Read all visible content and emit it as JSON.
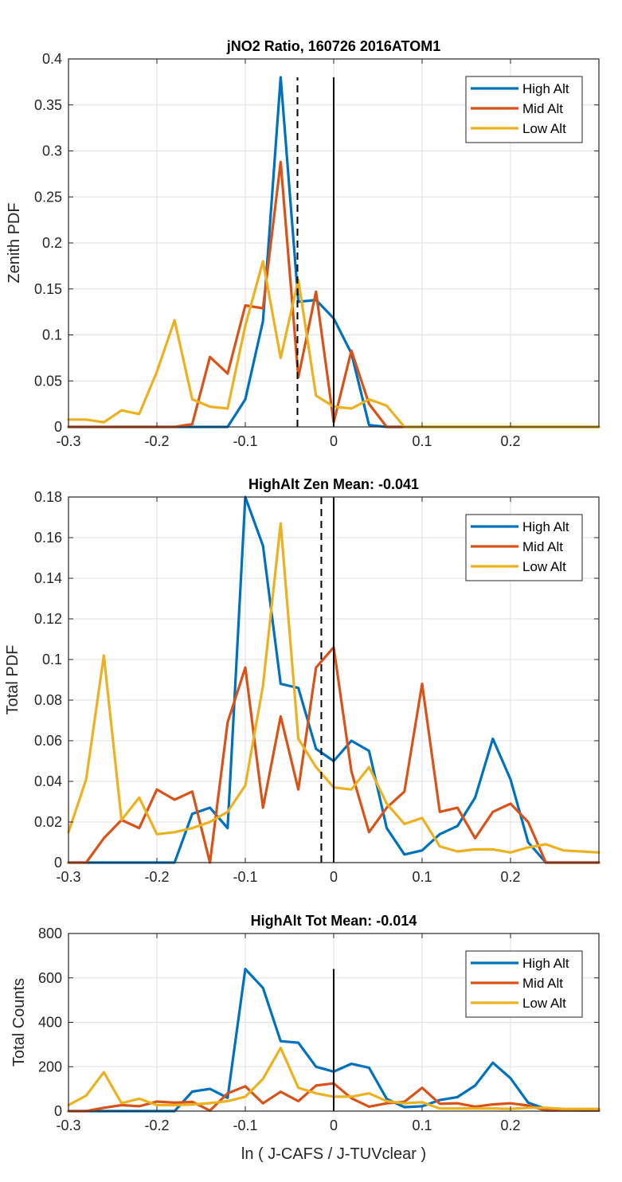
{
  "colors": {
    "high": "#0072BD",
    "mid": "#D95319",
    "low": "#EDB120"
  },
  "chart_data": [
    {
      "type": "line",
      "title": "jNO2 Ratio, 160726 2016ATOM1",
      "xlabel": "",
      "ylabel": "Zenith PDF",
      "xlim": [
        -0.3,
        0.3
      ],
      "ylim": [
        0,
        0.4
      ],
      "xticks": [
        "-0.3",
        "-0.2",
        "-0.1",
        "0",
        "0.1",
        "0.2"
      ],
      "xtick_values": [
        -0.3,
        -0.2,
        -0.1,
        0,
        0.1,
        0.2
      ],
      "yticks": [
        "0",
        "0.05",
        "0.1",
        "0.15",
        "0.2",
        "0.25",
        "0.3",
        "0.35",
        "0.4"
      ],
      "ytick_values": [
        0,
        0.05,
        0.1,
        0.15,
        0.2,
        0.25,
        0.3,
        0.35,
        0.4
      ],
      "grid": true,
      "legend": [
        "High Alt",
        "Mid Alt",
        "Low Alt"
      ],
      "legend_position": "top-right",
      "x": [
        -0.3,
        -0.28,
        -0.26,
        -0.24,
        -0.22,
        -0.2,
        -0.18,
        -0.16,
        -0.14,
        -0.12,
        -0.1,
        -0.08,
        -0.06,
        -0.04,
        -0.02,
        0,
        0.02,
        0.04,
        0.06,
        0.08,
        0.1,
        0.12,
        0.14,
        0.16,
        0.18,
        0.2,
        0.22,
        0.24,
        0.26,
        0.28,
        0.3
      ],
      "series": [
        {
          "name": "High Alt",
          "values": [
            0,
            0,
            0,
            0,
            0,
            0,
            0,
            0,
            0,
            0,
            0.03,
            0.115,
            0.38,
            0.136,
            0.138,
            0.118,
            0.08,
            0.002,
            0,
            0,
            0,
            0,
            0,
            0,
            0,
            0,
            0,
            0,
            0,
            0,
            0
          ]
        },
        {
          "name": "Mid Alt",
          "values": [
            0,
            0,
            0,
            0,
            0,
            0,
            0,
            0.003,
            0.076,
            0.058,
            0.132,
            0.129,
            0.288,
            0.054,
            0.147,
            0.005,
            0.083,
            0.025,
            0,
            0,
            0,
            0,
            0,
            0,
            0,
            0,
            0,
            0,
            0,
            0,
            0
          ]
        },
        {
          "name": "Low Alt",
          "values": [
            0.008,
            0.008,
            0.005,
            0.018,
            0.014,
            0.06,
            0.116,
            0.03,
            0.022,
            0.02,
            0.11,
            0.18,
            0.075,
            0.16,
            0.034,
            0.022,
            0.02,
            0.03,
            0.023,
            0,
            0,
            0,
            0,
            0,
            0,
            0,
            0,
            0,
            0,
            0,
            0
          ]
        }
      ],
      "vlines": [
        {
          "x": -0.041,
          "y": 0.38,
          "style": "dashed"
        },
        {
          "x": 0,
          "y": 0.38,
          "style": "solid"
        }
      ]
    },
    {
      "type": "line",
      "title": "HighAlt Zen Mean: -0.041",
      "xlabel": "",
      "ylabel": "Total PDF",
      "xlim": [
        -0.3,
        0.3
      ],
      "ylim": [
        0,
        0.18
      ],
      "xticks": [
        "-0.3",
        "-0.2",
        "-0.1",
        "0",
        "0.1",
        "0.2"
      ],
      "xtick_values": [
        -0.3,
        -0.2,
        -0.1,
        0,
        0.1,
        0.2
      ],
      "yticks": [
        "0",
        "0.02",
        "0.04",
        "0.06",
        "0.08",
        "0.1",
        "0.12",
        "0.14",
        "0.16",
        "0.18"
      ],
      "ytick_values": [
        0,
        0.02,
        0.04,
        0.06,
        0.08,
        0.1,
        0.12,
        0.14,
        0.16,
        0.18
      ],
      "grid": true,
      "legend": [
        "High Alt",
        "Mid Alt",
        "Low Alt"
      ],
      "legend_position": "top-right",
      "x": [
        -0.3,
        -0.28,
        -0.26,
        -0.24,
        -0.22,
        -0.2,
        -0.18,
        -0.16,
        -0.14,
        -0.12,
        -0.1,
        -0.08,
        -0.06,
        -0.04,
        -0.02,
        0,
        0.02,
        0.04,
        0.06,
        0.08,
        0.1,
        0.12,
        0.14,
        0.16,
        0.18,
        0.2,
        0.22,
        0.24,
        0.26,
        0.28,
        0.3
      ],
      "series": [
        {
          "name": "High Alt",
          "values": [
            0,
            0,
            0,
            0,
            0,
            0,
            0,
            0.024,
            0.027,
            0.017,
            0.18,
            0.156,
            0.088,
            0.086,
            0.056,
            0.05,
            0.06,
            0.055,
            0.017,
            0.004,
            0.006,
            0.014,
            0.018,
            0.032,
            0.061,
            0.041,
            0.01,
            0,
            0,
            0,
            0
          ]
        },
        {
          "name": "Mid Alt",
          "values": [
            0,
            0,
            0.012,
            0.021,
            0.017,
            0.036,
            0.031,
            0.035,
            0,
            0.069,
            0.096,
            0.027,
            0.072,
            0.036,
            0.096,
            0.106,
            0.045,
            0.015,
            0.027,
            0.035,
            0.088,
            0.025,
            0.027,
            0.012,
            0.025,
            0.029,
            0.02,
            0,
            0,
            0,
            0
          ]
        },
        {
          "name": "Low Alt",
          "values": [
            0.015,
            0.041,
            0.102,
            0.021,
            0.032,
            0.014,
            0.015,
            0.017,
            0.02,
            0.025,
            0.038,
            0.087,
            0.167,
            0.061,
            0.047,
            0.037,
            0.036,
            0.047,
            0.029,
            0.019,
            0.022,
            0.008,
            0.0055,
            0.0065,
            0.0065,
            0.005,
            0.0075,
            0.009,
            0.006,
            0.0055,
            0.005
          ]
        }
      ],
      "vlines": [
        {
          "x": -0.014,
          "y": 0.18,
          "style": "dashed"
        },
        {
          "x": 0,
          "y": 0.18,
          "style": "solid"
        }
      ]
    },
    {
      "type": "line",
      "title": "HighAlt Tot Mean: -0.014",
      "xlabel": "ln ( J-CAFS / J-TUVclear )",
      "ylabel": "Total Counts",
      "xlim": [
        -0.3,
        0.3
      ],
      "ylim": [
        0,
        800
      ],
      "xticks": [
        "-0.3",
        "-0.2",
        "-0.1",
        "0",
        "0.1",
        "0.2"
      ],
      "xtick_values": [
        -0.3,
        -0.2,
        -0.1,
        0,
        0.1,
        0.2
      ],
      "yticks": [
        "0",
        "200",
        "400",
        "600",
        "800"
      ],
      "ytick_values": [
        0,
        200,
        400,
        600,
        800
      ],
      "grid": true,
      "legend": [
        "High Alt",
        "Mid Alt",
        "Low Alt"
      ],
      "legend_position": "top-right",
      "x": [
        -0.3,
        -0.28,
        -0.26,
        -0.24,
        -0.22,
        -0.2,
        -0.18,
        -0.16,
        -0.14,
        -0.12,
        -0.1,
        -0.08,
        -0.06,
        -0.04,
        -0.02,
        0,
        0.02,
        0.04,
        0.06,
        0.08,
        0.1,
        0.12,
        0.14,
        0.16,
        0.18,
        0.2,
        0.22,
        0.24,
        0.26,
        0.28,
        0.3
      ],
      "series": [
        {
          "name": "High Alt",
          "values": [
            0,
            0,
            0,
            0,
            0,
            0,
            0,
            88,
            100,
            60,
            640,
            555,
            315,
            308,
            200,
            178,
            213,
            195,
            55,
            18,
            22,
            50,
            63,
            115,
            218,
            148,
            38,
            10,
            5,
            3,
            3
          ]
        },
        {
          "name": "Mid Alt",
          "values": [
            0,
            0,
            15,
            27,
            22,
            43,
            38,
            42,
            2,
            80,
            112,
            35,
            87,
            45,
            115,
            125,
            58,
            20,
            35,
            42,
            105,
            33,
            35,
            20,
            30,
            35,
            25,
            3,
            3,
            3,
            3
          ]
        },
        {
          "name": "Low Alt",
          "values": [
            27,
            70,
            175,
            36,
            56,
            27,
            27,
            30,
            36,
            45,
            65,
            145,
            285,
            105,
            80,
            65,
            65,
            80,
            45,
            35,
            40,
            12,
            12,
            12,
            12,
            10,
            15,
            15,
            10,
            10,
            10
          ]
        }
      ],
      "vlines": [
        {
          "x": 0,
          "y": 640,
          "style": "solid"
        }
      ]
    }
  ]
}
